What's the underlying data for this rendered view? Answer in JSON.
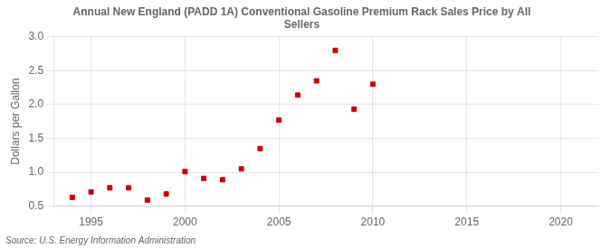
{
  "chart_data": {
    "type": "scatter",
    "title": [
      "Annual New England (PADD 1A) Conventional Gasoline Premium Rack Sales Price by All",
      "Sellers"
    ],
    "ylabel": "Dollars per Gallon",
    "annotations": [
      "Source: U.S. Energy Information Administration"
    ],
    "x": [
      1994,
      1995,
      1996,
      1997,
      1998,
      1999,
      2000,
      2001,
      2002,
      2003,
      2004,
      2005,
      2006,
      2007,
      2008,
      2009,
      2010
    ],
    "values": [
      0.63,
      0.71,
      0.77,
      0.77,
      0.59,
      0.68,
      1.01,
      0.91,
      0.89,
      1.05,
      1.35,
      1.77,
      2.14,
      2.35,
      2.8,
      1.93,
      2.3
    ],
    "color": "#cc0000",
    "marker": "square",
    "xlim": [
      1993,
      2022
    ],
    "xticks": [
      1995,
      2000,
      2005,
      2010,
      2015,
      2020
    ],
    "ylim": [
      0.5,
      3.0
    ],
    "yticks": [
      0.5,
      {
        "value": 1.0,
        "label": "1.0"
      },
      1.5,
      {
        "value": 2.0,
        "label": "2.0"
      },
      2.5,
      {
        "value": 3.0,
        "label": "3.0"
      }
    ],
    "grid": true
  }
}
